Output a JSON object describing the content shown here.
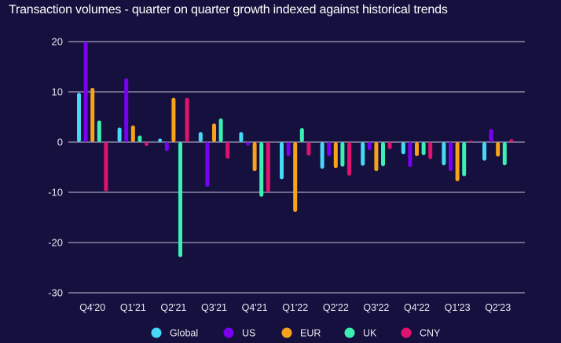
{
  "chart_data": {
    "type": "bar",
    "title": "Transaction volumes - quarter on quarter growth indexed against historical trends",
    "xlabel": "",
    "ylabel": "",
    "ylim": [
      -30,
      20
    ],
    "yticks": [
      20,
      10,
      0,
      -10,
      -20,
      -30
    ],
    "grid": true,
    "legend_position": "bottom",
    "categories": [
      "Q4'20",
      "Q1'21",
      "Q2'21",
      "Q3'21",
      "Q4'21",
      "Q1'22",
      "Q2'22",
      "Q3'22",
      "Q4'22",
      "Q1'23",
      "Q2'23"
    ],
    "series": [
      {
        "name": "Global",
        "color": "#45d8f7",
        "values": [
          9.8,
          2.9,
          0.7,
          2.0,
          2.0,
          -7.4,
          -5.3,
          -4.7,
          -2.4,
          -4.6,
          -3.7
        ]
      },
      {
        "name": "US",
        "color": "#7a00f0",
        "values": [
          20.0,
          12.7,
          -1.8,
          -8.9,
          -0.7,
          -2.8,
          -2.8,
          -1.6,
          -5.0,
          -5.8,
          2.6
        ]
      },
      {
        "name": "EUR",
        "color": "#f6a31b",
        "values": [
          10.8,
          3.3,
          8.8,
          3.7,
          -5.8,
          -13.9,
          -5.2,
          -5.8,
          -2.8,
          -7.8,
          -2.9
        ]
      },
      {
        "name": "UK",
        "color": "#3cefb3",
        "values": [
          4.3,
          1.3,
          -22.9,
          4.7,
          -10.9,
          2.8,
          -4.9,
          -4.8,
          -2.6,
          -6.8,
          -4.6
        ]
      },
      {
        "name": "CNY",
        "color": "#e0126e",
        "values": [
          -9.8,
          -0.8,
          8.8,
          -3.3,
          -9.9,
          -2.7,
          -6.7,
          -1.4,
          -3.4,
          0.3,
          0.6
        ]
      }
    ]
  }
}
